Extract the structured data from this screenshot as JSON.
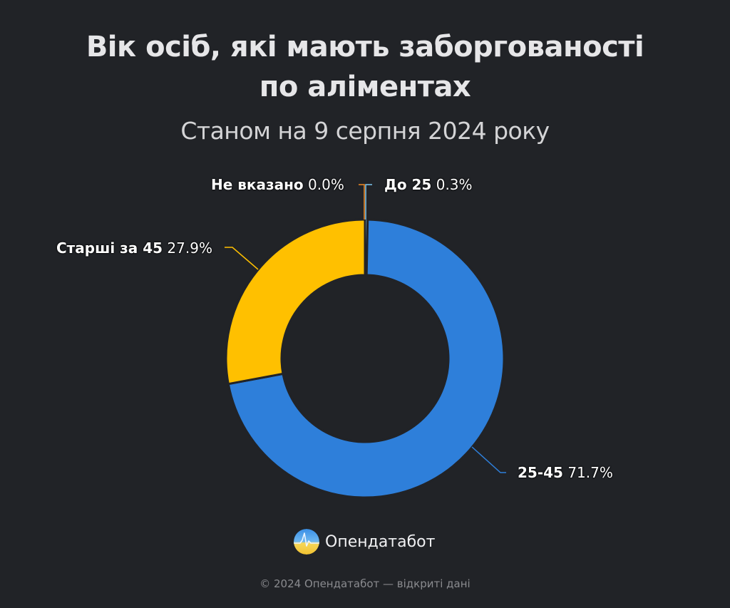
{
  "header": {
    "title_line1": "Вік осіб, які мають заборгованості",
    "title_line2": "по аліментах",
    "subtitle": "Станом на 9 серпня 2024 року"
  },
  "chart_data": {
    "type": "pie",
    "variant": "donut",
    "title": "Вік осіб, які мають заборгованості по аліментах",
    "subtitle": "Станом на 9 серпня 2024 року",
    "start_angle_deg": 0,
    "direction": "clockwise",
    "slices": [
      {
        "label": "До 25",
        "value": 0.3,
        "display": "0.3%",
        "color": "#7EC8F0"
      },
      {
        "label": "25-45",
        "value": 71.7,
        "display": "71.7%",
        "color": "#2E7FDA"
      },
      {
        "label": "Старші за 45",
        "value": 27.9,
        "display": "27.9%",
        "color": "#FFC000"
      },
      {
        "label": "Не вказано",
        "value": 0.0,
        "display": "0.0%",
        "color": "#F08A24"
      }
    ],
    "legend": "none (data labels with leader lines)"
  },
  "labels": {
    "do25": {
      "name": "До 25",
      "pct": "0.3%"
    },
    "age25_45": {
      "name": "25-45",
      "pct": "71.7%"
    },
    "older45": {
      "name": "Старші за 45",
      "pct": "27.9%"
    },
    "unknown": {
      "name": "Не вказано",
      "pct": "0.0%"
    }
  },
  "brand": {
    "icon": "opendatabot-logo-icon",
    "name": "Опендатабот"
  },
  "footer": {
    "text": "© 2024 Опендатабот — відкриті дані"
  },
  "colors": {
    "background": "#212327",
    "blue": "#2E7FDA",
    "yellow": "#FFC000",
    "light_blue": "#7EC8F0",
    "orange": "#F08A24"
  }
}
